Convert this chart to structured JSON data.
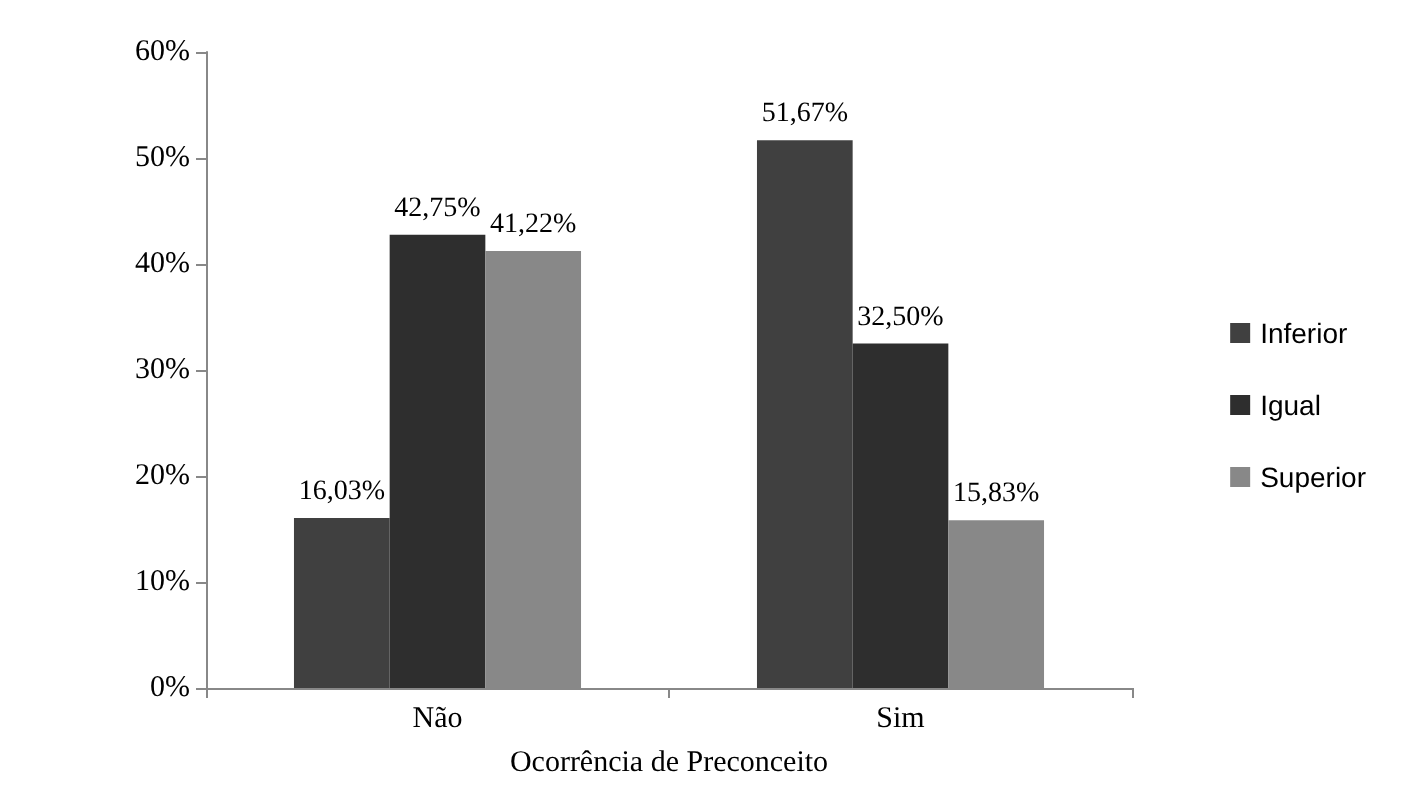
{
  "chart_data": {
    "type": "bar",
    "xlabel": "Ocorrência de Preconceito",
    "categories": [
      "Não",
      "Sim"
    ],
    "series": [
      {
        "name": "Inferior",
        "color": "#404040",
        "values": [
          16.03,
          51.67
        ],
        "value_labels": [
          "16,03%",
          "51,67%"
        ]
      },
      {
        "name": "Igual",
        "color": "#2e2e2e",
        "values": [
          42.75,
          32.5
        ],
        "value_labels": [
          "42,75%",
          "32,50%"
        ]
      },
      {
        "name": "Superior",
        "color": "#888888",
        "values": [
          41.22,
          15.83
        ],
        "value_labels": [
          "41,22%",
          "15,83%"
        ]
      }
    ],
    "ylim": [
      0,
      60
    ],
    "yticks": [
      {
        "value": 0,
        "label": "0%"
      },
      {
        "value": 10,
        "label": "10%"
      },
      {
        "value": 20,
        "label": "20%"
      },
      {
        "value": 30,
        "label": "30%"
      },
      {
        "value": 40,
        "label": "40%"
      },
      {
        "value": 50,
        "label": "50%"
      },
      {
        "value": 60,
        "label": "60%"
      }
    ],
    "grid": false,
    "legend": "right"
  }
}
